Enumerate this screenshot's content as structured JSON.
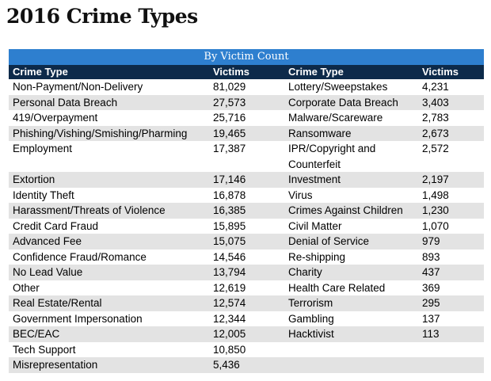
{
  "title": "2016 Crime Types",
  "table": {
    "caption": "By Victim Count",
    "headers": [
      "Crime Type",
      "Victims",
      "Crime Type",
      "Victims"
    ],
    "rows": [
      {
        "left_type": "Non-Payment/Non-Delivery",
        "left_victims": "81,029",
        "right_type": "Lottery/Sweepstakes",
        "right_victims": "4,231"
      },
      {
        "left_type": "Personal Data Breach",
        "left_victims": "27,573",
        "right_type": "Corporate Data Breach",
        "right_victims": "3,403"
      },
      {
        "left_type": "419/Overpayment",
        "left_victims": "25,716",
        "right_type": "Malware/Scareware",
        "right_victims": "2,783"
      },
      {
        "left_type": "Phishing/Vishing/Smishing/Pharming",
        "left_victims": "19,465",
        "right_type": "Ransomware",
        "right_victims": "2,673"
      },
      {
        "left_type": "Employment",
        "left_victims": "17,387",
        "right_type": "IPR/Copyright and Counterfeit",
        "right_victims": "2,572"
      },
      {
        "left_type": "Extortion",
        "left_victims": "17,146",
        "right_type": "Investment",
        "right_victims": "2,197"
      },
      {
        "left_type": "Identity Theft",
        "left_victims": "16,878",
        "right_type": "Virus",
        "right_victims": "1,498"
      },
      {
        "left_type": "Harassment/Threats of Violence",
        "left_victims": "16,385",
        "right_type": "Crimes Against Children",
        "right_victims": "1,230"
      },
      {
        "left_type": "Credit Card Fraud",
        "left_victims": "15,895",
        "right_type": "Civil Matter",
        "right_victims": "1,070"
      },
      {
        "left_type": "Advanced Fee",
        "left_victims": "15,075",
        "right_type": "Denial of Service",
        "right_victims": "979"
      },
      {
        "left_type": "Confidence Fraud/Romance",
        "left_victims": "14,546",
        "right_type": "Re-shipping",
        "right_victims": "893"
      },
      {
        "left_type": "No Lead Value",
        "left_victims": "13,794",
        "right_type": "Charity",
        "right_victims": "437"
      },
      {
        "left_type": "Other",
        "left_victims": "12,619",
        "right_type": "Health Care Related",
        "right_victims": "369"
      },
      {
        "left_type": "Real Estate/Rental",
        "left_victims": "12,574",
        "right_type": "Terrorism",
        "right_victims": "295"
      },
      {
        "left_type": "Government Impersonation",
        "left_victims": "12,344",
        "right_type": "Gambling",
        "right_victims": "137"
      },
      {
        "left_type": "BEC/EAC",
        "left_victims": "12,005",
        "right_type": "Hacktivist",
        "right_victims": "113"
      },
      {
        "left_type": "Tech Support",
        "left_victims": "10,850",
        "right_type": "",
        "right_victims": ""
      },
      {
        "left_type": "Misrepresentation",
        "left_victims": "5,436",
        "right_type": "",
        "right_victims": ""
      }
    ]
  }
}
